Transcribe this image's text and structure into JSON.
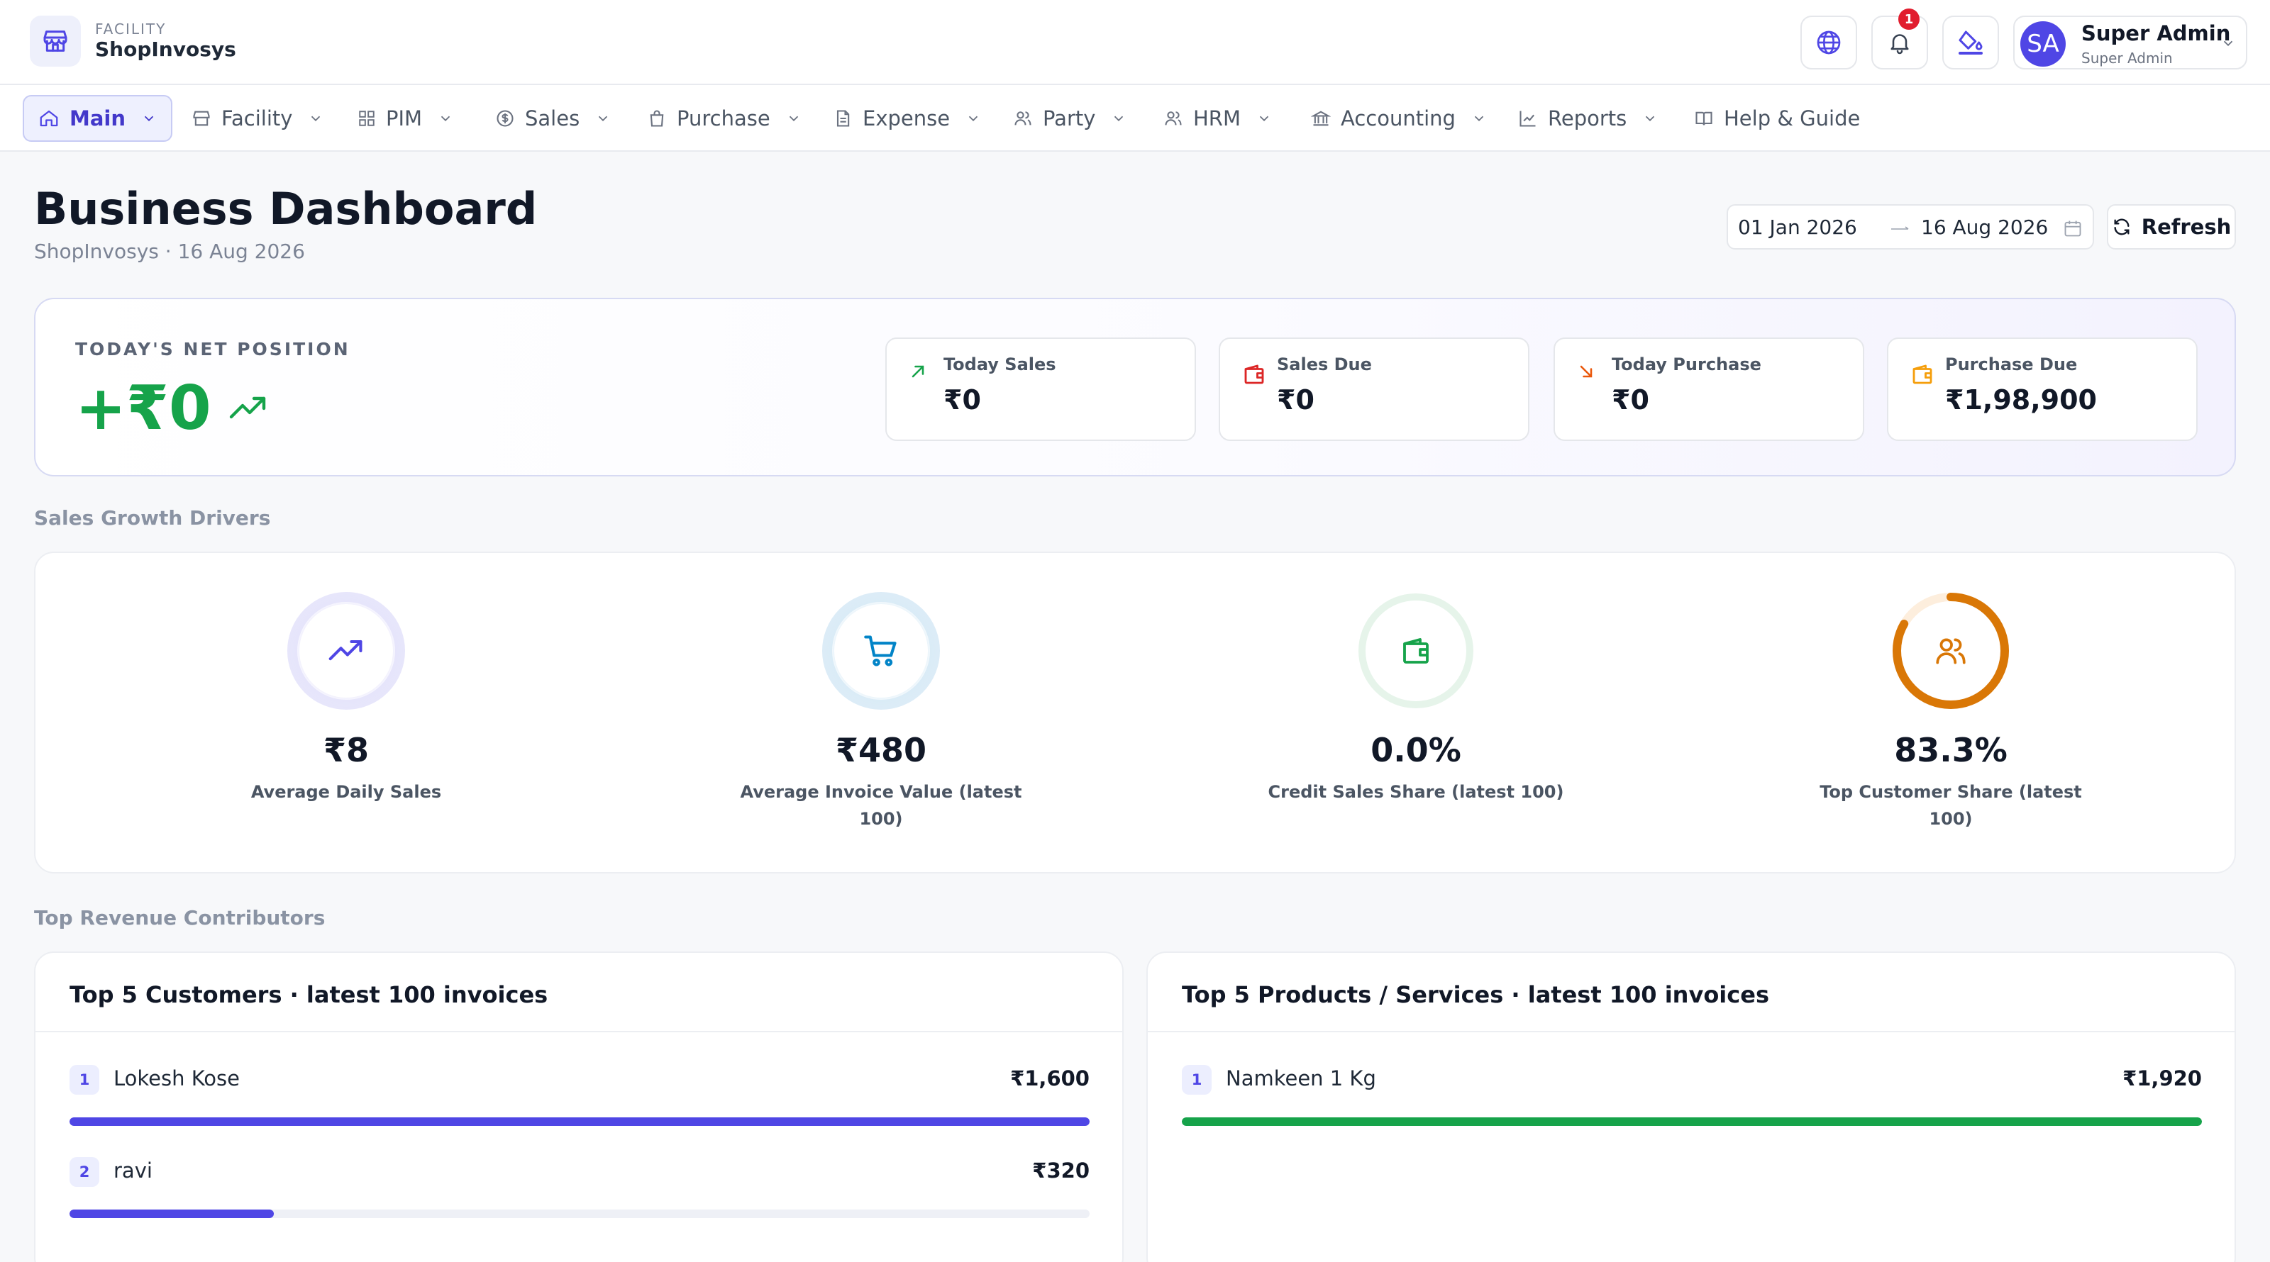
{
  "brand": {
    "kicker": "FACILITY",
    "name": "ShopInvosys"
  },
  "topbar": {
    "notification_count": "1",
    "user": {
      "initials": "SA",
      "name": "Super Admin",
      "role": "Super Admin"
    }
  },
  "nav": {
    "items": [
      {
        "label": "Main",
        "icon": "home-icon"
      },
      {
        "label": "Facility",
        "icon": "store-icon"
      },
      {
        "label": "PIM",
        "icon": "grid-icon"
      },
      {
        "label": "Sales",
        "icon": "dollar-circle-icon"
      },
      {
        "label": "Purchase",
        "icon": "bag-icon"
      },
      {
        "label": "Expense",
        "icon": "document-icon"
      },
      {
        "label": "Party",
        "icon": "users-icon"
      },
      {
        "label": "HRM",
        "icon": "users-icon"
      },
      {
        "label": "Accounting",
        "icon": "bank-icon"
      },
      {
        "label": "Reports",
        "icon": "chart-line-icon"
      },
      {
        "label": "Help & Guide",
        "icon": "book-icon"
      }
    ]
  },
  "header": {
    "title": "Business Dashboard",
    "subtitle": "ShopInvosys · 16 Aug 2026",
    "date_from": "01 Jan 2026",
    "date_to": "16 Aug 2026",
    "refresh_label": "Refresh"
  },
  "net_position": {
    "label": "TODAY'S NET POSITION",
    "value": "+₹0",
    "kpis": [
      {
        "label": "Today Sales",
        "value": "₹0",
        "icon": "arrow-up-right-icon",
        "color": "#16a34a"
      },
      {
        "label": "Sales Due",
        "value": "₹0",
        "icon": "wallet-icon",
        "color": "#dc2626"
      },
      {
        "label": "Today Purchase",
        "value": "₹0",
        "icon": "arrow-down-right-icon",
        "color": "#ea580c"
      },
      {
        "label": "Purchase Due",
        "value": "₹1,98,900",
        "icon": "wallet-icon",
        "color": "#f59e0b"
      }
    ]
  },
  "growth": {
    "section_label": "Sales Growth Drivers",
    "metrics": [
      {
        "value": "₹8",
        "label": "Average Daily Sales",
        "icon": "trending-up-icon",
        "color": "#4f46e5",
        "ring_fraction": 0
      },
      {
        "value": "₹480",
        "label": "Average Invoice Value (latest 100)",
        "icon": "cart-icon",
        "color": "#0284c7",
        "ring_fraction": 0
      },
      {
        "value": "0.0%",
        "label": "Credit Sales Share (latest 100)",
        "icon": "wallet-icon",
        "color": "#16a34a",
        "ring_fraction": 0
      },
      {
        "value": "83.3%",
        "label": "Top Customer Share (latest 100)",
        "icon": "users-icon",
        "color": "#d97706",
        "ring_fraction": 0.833
      }
    ]
  },
  "contributors": {
    "section_label": "Top Revenue Contributors",
    "customers": {
      "title": "Top 5 Customers · latest 100 invoices",
      "rows": [
        {
          "rank": "1",
          "name": "Lokesh Kose",
          "amount": "₹1,600",
          "share": 1.0
        },
        {
          "rank": "2",
          "name": "ravi",
          "amount": "₹320",
          "share": 0.2
        }
      ]
    },
    "products": {
      "title": "Top 5 Products / Services · latest 100 invoices",
      "rows": [
        {
          "rank": "1",
          "name": "Namkeen 1 Kg",
          "amount": "₹1,920",
          "share": 1.0
        }
      ]
    }
  },
  "colors": {
    "accent": "#4f46e5",
    "positive": "#16a34a",
    "customer_bar": "#4f46e5",
    "product_bar": "#16a34a"
  }
}
